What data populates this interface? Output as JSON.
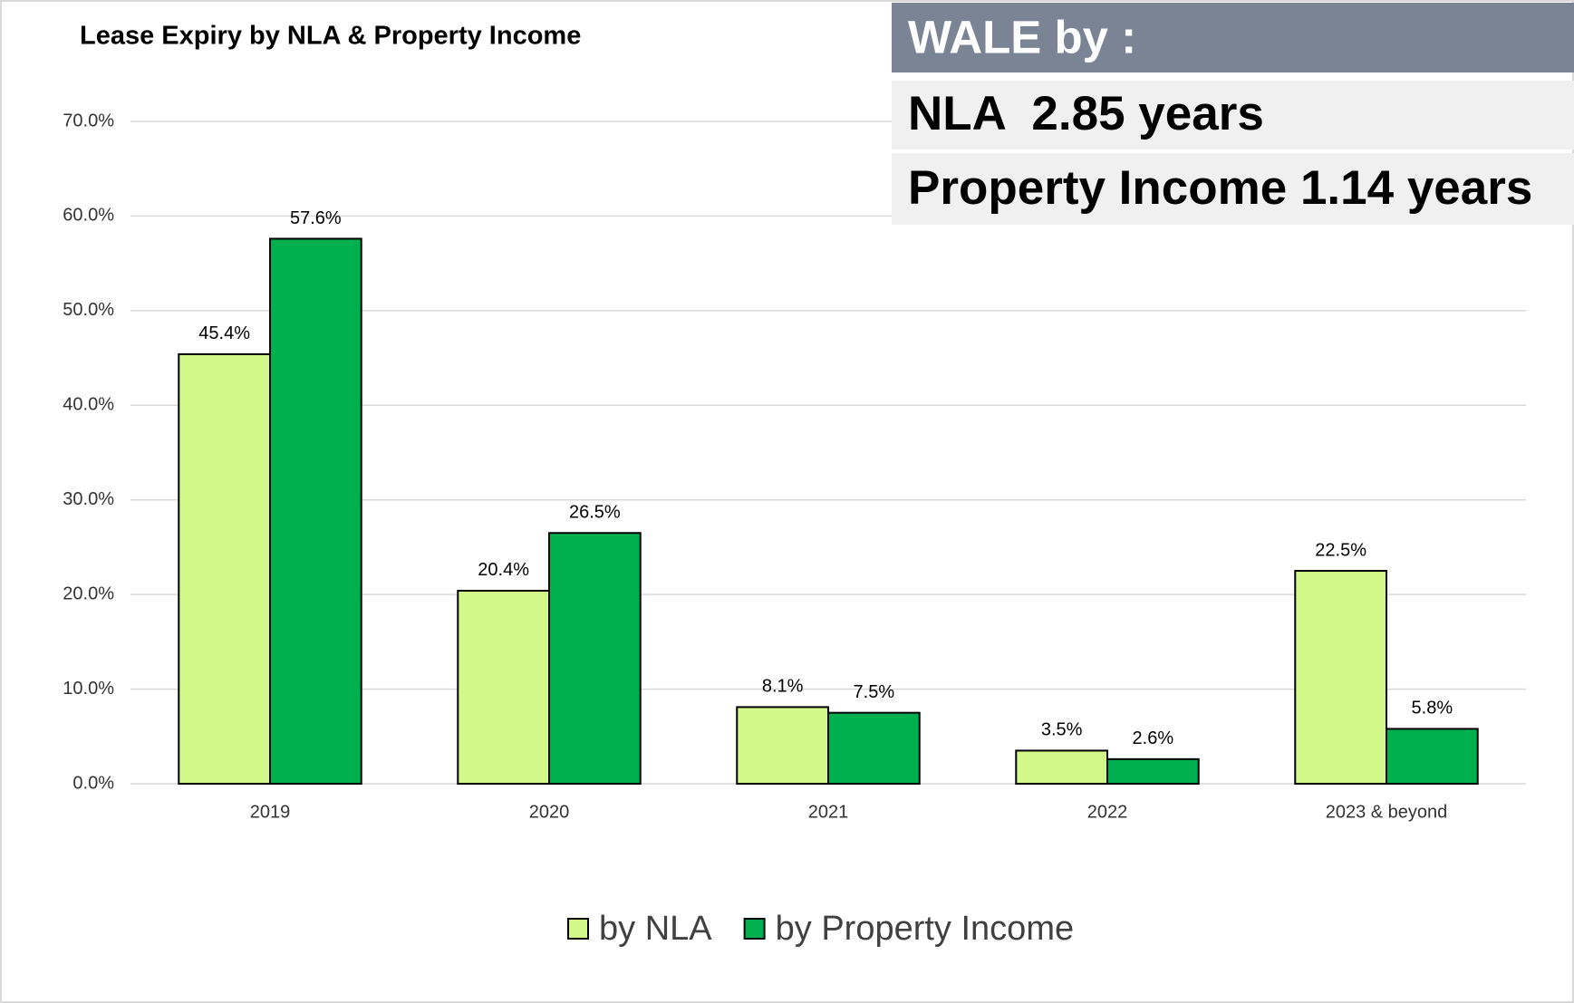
{
  "chart_data": {
    "type": "bar",
    "title": "Lease Expiry by NLA & Property Income",
    "annotations": [
      "WALE by :",
      "NLA  2.85 years",
      "Property Income 1.14 years"
    ],
    "categories": [
      "2019",
      "2020",
      "2021",
      "2022",
      "2023 & beyond"
    ],
    "series": [
      {
        "name": "by NLA",
        "color": "#d2f88a",
        "values": [
          45.4,
          20.4,
          8.1,
          3.5,
          22.5
        ],
        "value_labels": [
          "45.4%",
          "20.4%",
          "8.1%",
          "3.5%",
          "22.5%"
        ]
      },
      {
        "name": "by Property Income",
        "color": "#00b04f",
        "values": [
          57.6,
          26.5,
          7.5,
          2.6,
          5.8
        ],
        "value_labels": [
          "57.6%",
          "26.5%",
          "7.5%",
          "2.6%",
          "5.8%"
        ]
      }
    ],
    "ylim": [
      0,
      70
    ],
    "yticks": [
      {
        "value": 0,
        "label": "0.0%"
      },
      {
        "value": 10,
        "label": "10.0%"
      },
      {
        "value": 20,
        "label": "20.0%"
      },
      {
        "value": 30,
        "label": "30.0%"
      },
      {
        "value": 40,
        "label": "40.0%"
      },
      {
        "value": 50,
        "label": "50.0%"
      },
      {
        "value": 60,
        "label": "60.0%"
      },
      {
        "value": 70,
        "label": "70.0%"
      }
    ],
    "grid": true,
    "legend": "bottom"
  }
}
